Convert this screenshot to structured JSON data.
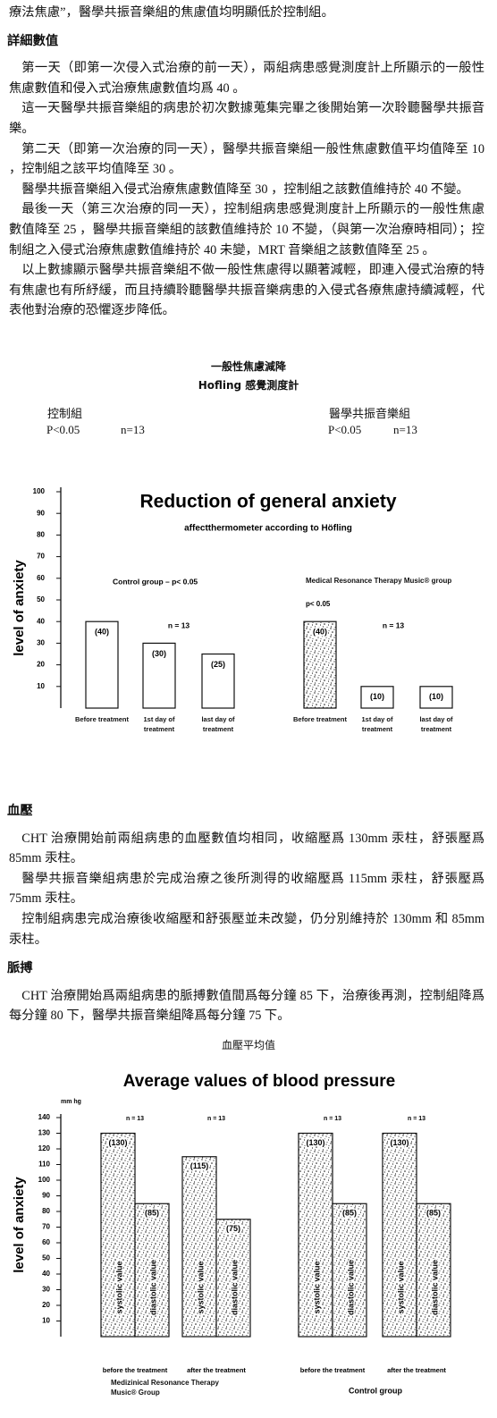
{
  "document": {
    "lead": "療法焦慮”，醫學共振音樂組的焦慮值均明顯低於控制組。",
    "detail_heading": "詳細數值",
    "detail_paragraphs": [
      "第一天（即第一次侵入式治療的前一天），兩組病患感覺測度計上所顯示的一般性焦慮數值和侵入式治療焦慮數值均爲 40 。",
      "這一天醫學共振音樂組的病患於初次數據蒐集完畢之後開始第一次聆聽醫學共振音樂。",
      "第二天（即第一次治療的同一天），醫學共振音樂組一般性焦慮數值平均值降至 10 ，控制組之該平均值降至 30 。",
      "醫學共振音樂組入侵式治療焦慮數值降至 30 ，控制組之該數值維持於 40 不變。",
      "最後一天（第三次治療的同一天），控制組病患感覺測度計上所顯示的一般性焦慮數值降至 25 ，醫學共振音樂組的該數值維持於 10 不變，（與第一次治療時相同）；控制組之入侵式治療焦慮數值維持於 40 未變，MRT 音樂組之該數值降至 25 。",
      "以上數據顯示醫學共振音樂組不做一般性焦慮得以顯著減輕，即連入侵式治療的特有焦慮也有所紓緩，而且持續聆聽醫學共振音樂病患的入侵式各療焦慮持續減輕，代表他對治療的恐懼逐步降低。"
    ],
    "figure1_caption": [
      "一般性焦慮減降",
      "Hofling 感覺測度計"
    ],
    "figure1_groups": [
      {
        "name": "控制組",
        "p": "P<0.05",
        "n": "n=13"
      },
      {
        "name": "醫學共振音樂組",
        "p": "P<0.05",
        "n": "n=13"
      }
    ],
    "bp_heading": "血壓",
    "bp_paragraphs": [
      "CHT 治療開始前兩組病患的血壓數值均相同，收縮壓爲 130mm 汞柱，舒張壓爲 85mm 汞柱。",
      "醫學共振音樂組病患於完成治療之後所測得的收縮壓爲 115mm 汞柱，舒張壓爲 75mm 汞柱。",
      "控制組病患完成治療後收縮壓和舒張壓並未改變，仍分別維持於 130mm 和 85mm 汞柱。"
    ],
    "pulse_heading": "脈搏",
    "pulse_paragraphs": [
      "CHT 治療開始爲兩組病患的脈搏數值間爲每分鐘 85 下，治療後再測，控制組降爲每分鐘 80 下，醫學共振音樂組降爲每分鐘 75 下。"
    ],
    "figure2_caption": "血壓平均值"
  },
  "chart_data": [
    {
      "type": "bar",
      "title": "Reduction of general anxiety",
      "subtitle": "affectthermometer according to Höfling",
      "y_label": "level of anxiety",
      "categories": [
        "Before treatment",
        "1st day of treatment",
        "last day of treatment",
        "Before treatment",
        "1st day of treatment",
        "last day of treatment"
      ],
      "values": [
        40,
        30,
        25,
        40,
        10,
        10
      ],
      "value_labels": [
        "(40)",
        "(30)",
        "(25)",
        "(40)",
        "(10)",
        "(10)"
      ],
      "groups": [
        {
          "name": "Control group – p< 0.05",
          "n": "n = 13"
        },
        {
          "name": "Medical Resonance Therapy Music® group",
          "note": "p< 0.05",
          "n": "n = 13"
        }
      ],
      "color": "#ffffff",
      "ylim": [
        0,
        100
      ],
      "yticks": [
        10,
        20,
        30,
        40,
        50,
        60,
        70,
        80,
        90,
        100
      ]
    },
    {
      "type": "grouped_bar",
      "title": "Average values of blood pressure",
      "y_unit": "mm hg",
      "y_label": "level of anxiety",
      "categories": [
        "before the treatment",
        "after the treatment",
        "before the treatment",
        "after the treatment"
      ],
      "n_labels": [
        "n = 13",
        "n = 13",
        "n = 13",
        "n = 13"
      ],
      "groups": [
        "Medizinical Resonance Therapy Music® Group",
        "Control group"
      ],
      "series": [
        {
          "name": "systolic value",
          "values": [
            130,
            115,
            130,
            130
          ],
          "value_labels": [
            "(130)",
            "(115)",
            "(130)",
            "(130)"
          ]
        },
        {
          "name": "diastolic value",
          "values": [
            85,
            75,
            85,
            85
          ],
          "value_labels": [
            "(85)",
            "(75)",
            "(85)",
            "(85)"
          ]
        }
      ],
      "ylim": [
        0,
        140
      ],
      "yticks": [
        10,
        20,
        30,
        40,
        50,
        60,
        70,
        80,
        90,
        100,
        110,
        120,
        130,
        140
      ]
    }
  ]
}
